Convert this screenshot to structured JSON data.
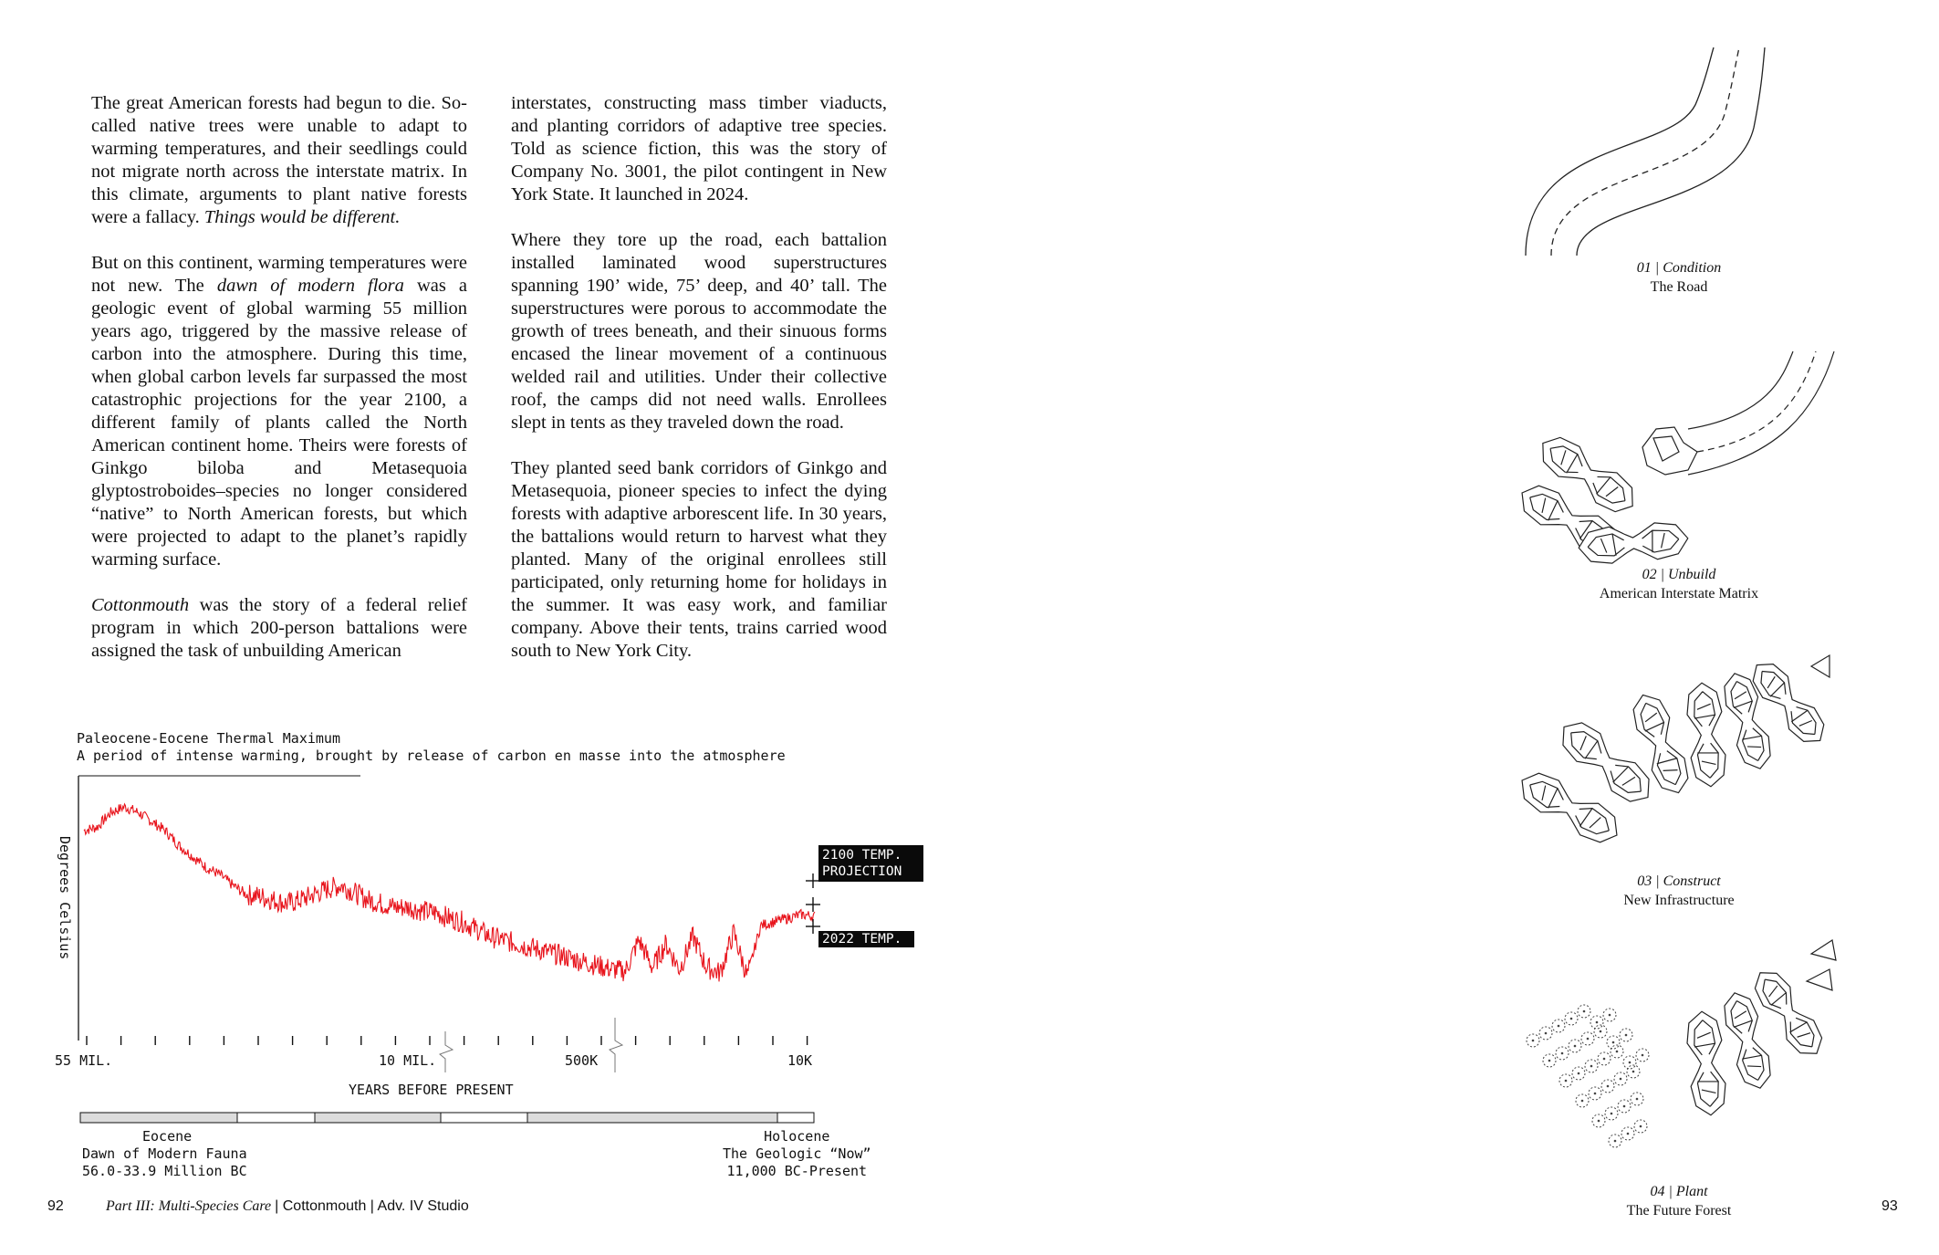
{
  "text": {
    "left_paragraphs": [
      "The great American forests had begun to die. So-called native trees were unable to adapt to warming temperatures, and their seedlings could not migrate north across the interstate matrix. In this climate, arguments to plant native forests were a fallacy. ",
      "But on this continent, warming temperatures were not new. The ",
      "Cottonmouth"
    ],
    "p1_italic": "Things would be different.",
    "p2_italic": "dawn of modern flora",
    "p2_rest": " was a geologic event of global warming 55 million years ago, triggered by the massive release of carbon into the atmosphere. During this time, when global carbon levels far surpassed the most catastrophic projections for the year 2100, a different family of plants called the North American continent home. Theirs were forests of Ginkgo biloba and Metasequoia glyptostroboides–species no longer considered “native” to North American forests, but which were projected to adapt to the planet’s rapidly warming surface.",
    "p3_rest": " was the story of a federal relief program in which 200-person battalions were assigned the task of unbuilding American",
    "right_paragraphs": [
      "interstates, constructing mass timber viaducts, and planting corridors of adaptive tree species. Told as science fiction, this was the story of Company No. 3001, the pilot contingent in New York State. It launched in 2024.",
      "Where they tore up the road, each battalion installed laminated wood superstructures spanning 190’ wide, 75’ deep, and 40’ tall. The superstructures were porous to accommodate the growth of trees beneath, and their sinuous forms encased the linear movement of a continuous welded rail and utilities. Under their collective roof, the camps did not need walls. Enrollees slept in tents as they traveled down the road.",
      "They planted seed bank corridors of Ginkgo and Metasequoia, pioneer species to infect the dying forests with adaptive arborescent life. In 30 years, the battalions would return to harvest what they planted. Many of the original enrollees still participated, only returning home for holidays in the summer. It was easy work, and familiar company. Above their tents, trains carried wood south to New York City."
    ]
  },
  "chart_data": {
    "type": "line",
    "title": "Paleocene-Eocene Thermal Maximum",
    "subtitle": "A period of intense warming, brought by release of carbon en masse into the atmosphere",
    "ylabel": "Degrees Celsius",
    "xlabel": "YEARS BEFORE PRESENT",
    "x_tick_labels": [
      "55 MIL.",
      "10 MIL.",
      "500K",
      "10K"
    ],
    "series": [
      {
        "color": "#e8141c",
        "values": [
          0.8,
          0.82,
          0.9,
          0.93,
          0.9,
          0.85,
          0.8,
          0.72,
          0.66,
          0.6,
          0.56,
          0.5,
          0.45,
          0.44,
          0.42,
          0.4,
          0.42,
          0.45,
          0.48,
          0.5,
          0.46,
          0.42,
          0.4,
          0.38,
          0.38,
          0.36,
          0.35,
          0.32,
          0.3,
          0.26,
          0.22,
          0.2,
          0.18,
          0.16,
          0.14,
          0.12,
          0.1,
          0.08,
          0.06,
          0.04,
          0.03,
          0.2,
          0.05,
          0.18,
          0.04,
          0.22,
          0.05,
          0.02,
          0.24,
          0.0,
          0.28,
          0.3,
          0.32,
          0.34,
          0.33
        ]
      }
    ],
    "annotations": [
      "2100 TEMP. PROJECTION",
      "2022 TEMP."
    ],
    "eras": [
      {
        "name": "Eocene",
        "desc": "Dawn of Modern Fauna",
        "range": "56.0-33.9 Million BC"
      },
      {
        "name": "Holocene",
        "desc": "The Geologic “Now”",
        "range": "11,000 BC-Present"
      }
    ]
  },
  "footer": {
    "page_left": "92",
    "running_head": "Part III: Multi-Species Care",
    "project": "| Cottonmouth | Adv. IV Studio",
    "page_right": "93"
  },
  "figures": [
    {
      "num": "01 | Condition",
      "title": "The Road"
    },
    {
      "num": "02 | Unbuild",
      "title": "American Interstate Matrix"
    },
    {
      "num": "03 | Construct",
      "title": "New Infrastructure"
    },
    {
      "num": "04 | Plant",
      "title": "The Future Forest"
    }
  ]
}
